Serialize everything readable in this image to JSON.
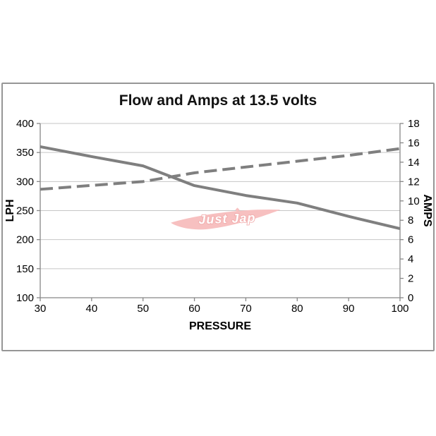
{
  "chart_data": {
    "type": "line",
    "title": "Flow and Amps at 13.5 volts",
    "x_axis": {
      "label": "PRESSURE",
      "min": 30,
      "max": 100,
      "ticks": [
        30,
        40,
        50,
        60,
        70,
        80,
        90,
        100
      ]
    },
    "y_axis_left": {
      "label": "LPH",
      "min": 100,
      "max": 400,
      "ticks": [
        400,
        350,
        300,
        250,
        200,
        150,
        100
      ]
    },
    "y_axis_right": {
      "label": "AMPS",
      "min": 0,
      "max": 18,
      "ticks": [
        18,
        16,
        14,
        12,
        10,
        8,
        6,
        4,
        2,
        0
      ]
    },
    "grid": "horizontal-major",
    "legend": "none",
    "x": [
      30,
      40,
      50,
      60,
      70,
      80,
      90,
      100
    ],
    "series": [
      {
        "name": "Flow",
        "unit": "LPH",
        "axis": "left",
        "line_style": "solid",
        "color": "#7f7f7f",
        "values": [
          360,
          343,
          327,
          293,
          276,
          263,
          240,
          219
        ]
      },
      {
        "name": "Amps",
        "unit": "AMPS",
        "axis": "right",
        "line_style": "dashed",
        "color": "#7f7f7f",
        "values": [
          11.2,
          11.6,
          12.0,
          12.9,
          13.5,
          14.1,
          14.7,
          15.4
        ]
      }
    ]
  },
  "watermark": {
    "text": "Just Jap",
    "swoosh_color": "#f7c0c0",
    "text_fill": "#ffffff",
    "text_outline": "#f0a8a8"
  },
  "colors": {
    "background": "#ffffff",
    "chart_border": "#969696",
    "gridline": "#c6c6c6",
    "axis": "#878787",
    "tick_label": "#000000",
    "series_gray": "#7f7f7f"
  }
}
